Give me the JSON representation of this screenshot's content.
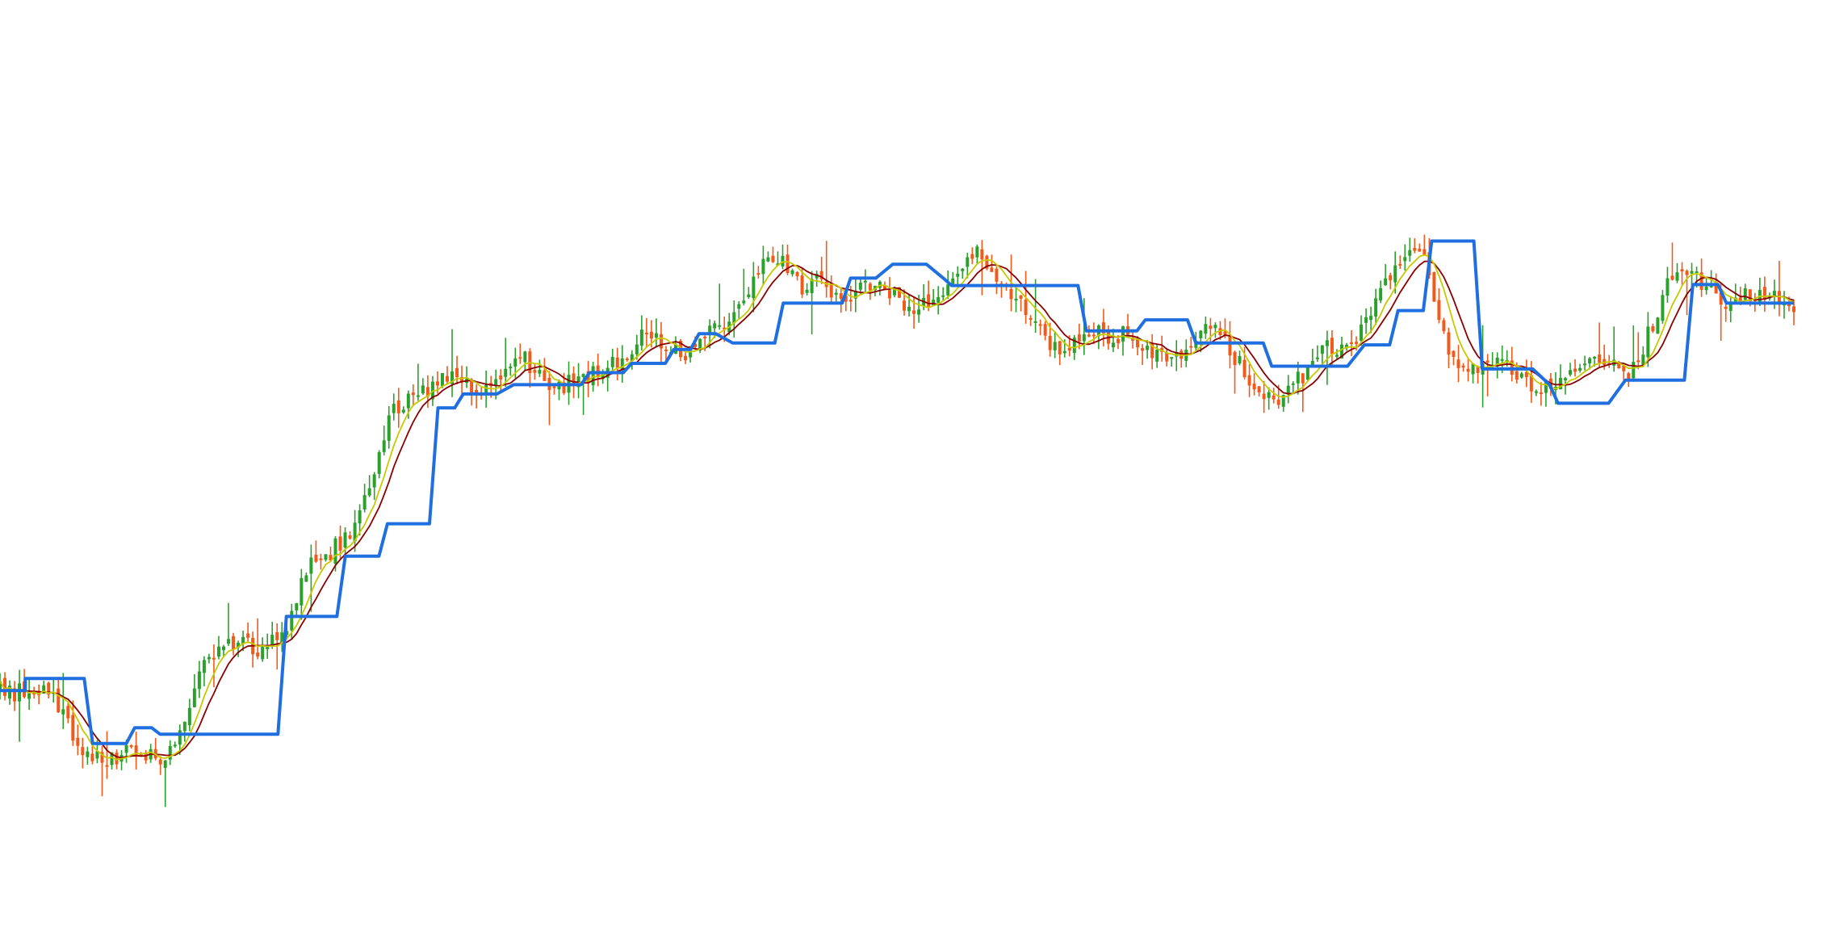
{
  "chart_data": {
    "type": "line",
    "title": "",
    "xlabel": "",
    "ylabel": "",
    "grid": false,
    "legend": "none",
    "axes_visible": false,
    "ylim": [
      0,
      100
    ],
    "colors": {
      "background": "#ffffff",
      "candle_up": "#2ca02c",
      "candle_down": "#f05a1a",
      "step_line": "#1f6fe0",
      "ma_fast": "#c8c800",
      "ma_slow": "#8b0000"
    },
    "price_path": [
      [
        0,
        25.5
      ],
      [
        3,
        25.2
      ],
      [
        5,
        26.0
      ],
      [
        7,
        24.0
      ],
      [
        9,
        20.0
      ],
      [
        11,
        18.5
      ],
      [
        13,
        17.8
      ],
      [
        15,
        18.8
      ],
      [
        17,
        18.0
      ],
      [
        20,
        18.3
      ],
      [
        22,
        23.0
      ],
      [
        24,
        28.0
      ],
      [
        26,
        30.5
      ],
      [
        27,
        31.0
      ],
      [
        29,
        30.8
      ],
      [
        31,
        29.5
      ],
      [
        34,
        32.5
      ],
      [
        36,
        38.0
      ],
      [
        38,
        40.0
      ],
      [
        40,
        41.0
      ],
      [
        42,
        42.5
      ],
      [
        44,
        48.0
      ],
      [
        46,
        54.0
      ],
      [
        47,
        56.0
      ],
      [
        49,
        57.0
      ],
      [
        51,
        58.0
      ],
      [
        53,
        59.5
      ],
      [
        55,
        59.0
      ],
      [
        57,
        58.2
      ],
      [
        59,
        58.0
      ],
      [
        61,
        60.5
      ],
      [
        62,
        61.5
      ],
      [
        64,
        59.5
      ],
      [
        66,
        58.5
      ],
      [
        68,
        58.5
      ],
      [
        70,
        59.2
      ],
      [
        72,
        60.2
      ],
      [
        74,
        61.5
      ],
      [
        76,
        63.5
      ],
      [
        78,
        63.0
      ],
      [
        80,
        62.5
      ],
      [
        82,
        62.0
      ],
      [
        84,
        63.5
      ],
      [
        86,
        65.5
      ],
      [
        88,
        67.5
      ],
      [
        90,
        71.0
      ],
      [
        91,
        73.0
      ],
      [
        93,
        71.5
      ],
      [
        95,
        69.0
      ],
      [
        97,
        69.5
      ],
      [
        99,
        68.0
      ],
      [
        101,
        68.5
      ],
      [
        103,
        69.5
      ],
      [
        105,
        68.5
      ],
      [
        107,
        67.5
      ],
      [
        109,
        67.0
      ],
      [
        111,
        68.0
      ],
      [
        113,
        69.5
      ],
      [
        115,
        71.5
      ],
      [
        116,
        73.0
      ],
      [
        118,
        71.0
      ],
      [
        120,
        68.0
      ],
      [
        122,
        66.5
      ],
      [
        124,
        64.5
      ],
      [
        125,
        62.0
      ],
      [
        127,
        62.5
      ],
      [
        129,
        63.5
      ],
      [
        131,
        64.0
      ],
      [
        133,
        64.0
      ],
      [
        135,
        63.0
      ],
      [
        137,
        61.5
      ],
      [
        139,
        61.5
      ],
      [
        141,
        62.5
      ],
      [
        143,
        64.0
      ],
      [
        145,
        64.5
      ],
      [
        147,
        61.0
      ],
      [
        149,
        58.0
      ],
      [
        151,
        57.0
      ],
      [
        153,
        57.8
      ],
      [
        155,
        60.0
      ],
      [
        157,
        62.5
      ],
      [
        159,
        62.0
      ],
      [
        161,
        63.5
      ],
      [
        163,
        67.0
      ],
      [
        165,
        70.5
      ],
      [
        167,
        72.5
      ],
      [
        169,
        72.0
      ],
      [
        171,
        66.0
      ],
      [
        172,
        62.0
      ],
      [
        174,
        60.0
      ],
      [
        176,
        60.0
      ],
      [
        178,
        61.0
      ],
      [
        180,
        59.0
      ],
      [
        182,
        58.0
      ],
      [
        184,
        58.5
      ],
      [
        186,
        59.0
      ],
      [
        188,
        60.8
      ],
      [
        190,
        62.0
      ],
      [
        192,
        60.5
      ],
      [
        193,
        59.0
      ],
      [
        195,
        62.0
      ],
      [
        197,
        67.0
      ],
      [
        199,
        71.0
      ],
      [
        201,
        70.5
      ],
      [
        203,
        68.5
      ],
      [
        205,
        67.5
      ],
      [
        207,
        68.0
      ],
      [
        209,
        68.5
      ],
      [
        211,
        67.8
      ],
      [
        213,
        67.0
      ]
    ],
    "step_path": [
      [
        0,
        25.5
      ],
      [
        3,
        25.5
      ],
      [
        3,
        26.8
      ],
      [
        10,
        26.8
      ],
      [
        11,
        19.8
      ],
      [
        15,
        19.8
      ],
      [
        16,
        21.5
      ],
      [
        18,
        21.5
      ],
      [
        19,
        20.8
      ],
      [
        33,
        20.8
      ],
      [
        34,
        33.5
      ],
      [
        40,
        33.5
      ],
      [
        41,
        40.0
      ],
      [
        45,
        40.0
      ],
      [
        46,
        43.5
      ],
      [
        51,
        43.5
      ],
      [
        52,
        56.0
      ],
      [
        54,
        56.0
      ],
      [
        55,
        57.5
      ],
      [
        59,
        57.5
      ],
      [
        61,
        58.5
      ],
      [
        69,
        58.5
      ],
      [
        70,
        59.8
      ],
      [
        74,
        59.8
      ],
      [
        75,
        60.8
      ],
      [
        79,
        60.8
      ],
      [
        80,
        62.3
      ],
      [
        82,
        62.3
      ],
      [
        83,
        64.0
      ],
      [
        85,
        64.0
      ],
      [
        87,
        63.0
      ],
      [
        92,
        63.0
      ],
      [
        93,
        67.3
      ],
      [
        100,
        67.3
      ],
      [
        101,
        70.0
      ],
      [
        104,
        70.0
      ],
      [
        106,
        71.5
      ],
      [
        110,
        71.5
      ],
      [
        112,
        70.0
      ],
      [
        113,
        69.2
      ],
      [
        128,
        69.2
      ],
      [
        129,
        64.3
      ],
      [
        135,
        64.3
      ],
      [
        136,
        65.5
      ],
      [
        141,
        65.5
      ],
      [
        142,
        63.0
      ],
      [
        150,
        63.0
      ],
      [
        151,
        60.5
      ],
      [
        160,
        60.5
      ],
      [
        162,
        62.8
      ],
      [
        165,
        62.8
      ],
      [
        166,
        66.5
      ],
      [
        169,
        66.5
      ],
      [
        170,
        74.0
      ],
      [
        175,
        74.0
      ],
      [
        176,
        60.2
      ],
      [
        182,
        60.2
      ],
      [
        184,
        58.5
      ],
      [
        185,
        56.5
      ],
      [
        191,
        56.5
      ],
      [
        193,
        59.0
      ],
      [
        200,
        59.0
      ],
      [
        201,
        69.3
      ],
      [
        204,
        69.3
      ],
      [
        205,
        67.3
      ],
      [
        213,
        67.3
      ]
    ]
  }
}
